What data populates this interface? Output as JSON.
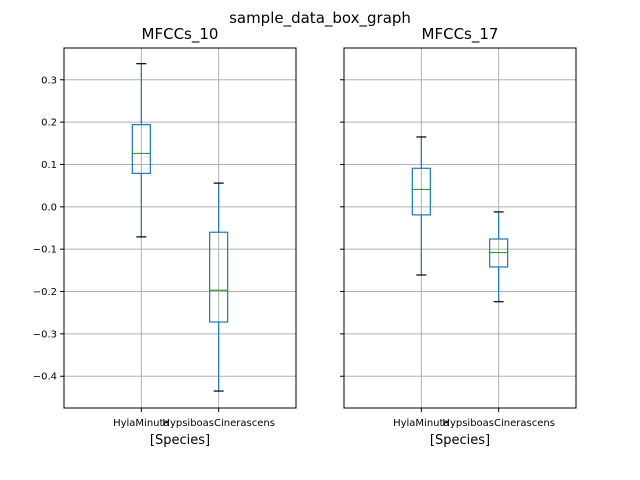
{
  "figure": {
    "suptitle": "sample_data_box_graph"
  },
  "chart_data": [
    {
      "type": "box",
      "title": "MFCCs_10",
      "xlabel": "[Species]",
      "ylabel": "",
      "categories": [
        "HylaMinuta",
        "HypsiboasCinerascens"
      ],
      "ylim": [
        -0.475,
        0.375
      ],
      "yticks": [
        0.3,
        0.2,
        0.1,
        0.0,
        -0.1,
        -0.2,
        -0.3,
        -0.4
      ],
      "ytick_labels": [
        "0.3",
        "0.2",
        "0.1",
        "0.0",
        "−0.1",
        "−0.2",
        "−0.3",
        "−0.4"
      ],
      "grid": true,
      "boxes": [
        {
          "whisker_low": -0.071,
          "q1": 0.079,
          "median": 0.126,
          "q3": 0.194,
          "whisker_high": 0.338
        },
        {
          "whisker_low": -0.435,
          "q1": -0.272,
          "median": -0.197,
          "q3": -0.06,
          "whisker_high": 0.056
        }
      ]
    },
    {
      "type": "box",
      "title": "MFCCs_17",
      "xlabel": "[Species]",
      "ylabel": "",
      "categories": [
        "HylaMinuta",
        "HypsiboasCinerascens"
      ],
      "ylim": [
        -0.475,
        0.375
      ],
      "yticks": [
        0.3,
        0.2,
        0.1,
        0.0,
        -0.1,
        -0.2,
        -0.3,
        -0.4
      ],
      "ytick_labels": [],
      "grid": true,
      "boxes": [
        {
          "whisker_low": -0.161,
          "q1": -0.019,
          "median": 0.041,
          "q3": 0.091,
          "whisker_high": 0.165
        },
        {
          "whisker_low": -0.224,
          "q1": -0.142,
          "median": -0.108,
          "q3": -0.076,
          "whisker_high": -0.012
        }
      ]
    }
  ]
}
